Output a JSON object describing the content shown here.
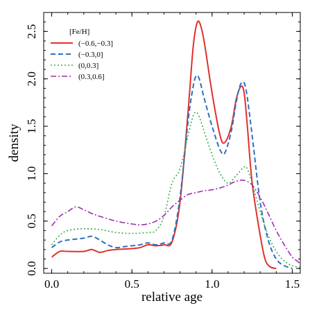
{
  "chart_data": {
    "type": "line",
    "xlabel": "relative age",
    "ylabel": "density",
    "xlim": [
      -0.05,
      1.55
    ],
    "ylim": [
      -0.05,
      2.7
    ],
    "x_ticks": [
      0.0,
      0.5,
      1.0,
      1.5
    ],
    "x_tick_labels": [
      "0.0",
      "0.5",
      "1.0",
      "1.5"
    ],
    "y_ticks": [
      0.0,
      0.5,
      1.0,
      1.5,
      2.0,
      2.5
    ],
    "y_tick_labels": [
      "0.0",
      "0.5",
      "1.0",
      "1.5",
      "2.0",
      "2.5"
    ],
    "legend": {
      "title": "[Fe/H]",
      "placement": "top-left"
    },
    "series": [
      {
        "name": "(−0.6,−0.3]",
        "color": "#e0302b",
        "style": "solid",
        "points": [
          [
            0.0,
            0.12
          ],
          [
            0.05,
            0.18
          ],
          [
            0.1,
            0.18
          ],
          [
            0.2,
            0.18
          ],
          [
            0.25,
            0.2
          ],
          [
            0.3,
            0.17
          ],
          [
            0.35,
            0.19
          ],
          [
            0.4,
            0.2
          ],
          [
            0.5,
            0.21
          ],
          [
            0.55,
            0.22
          ],
          [
            0.6,
            0.25
          ],
          [
            0.65,
            0.24
          ],
          [
            0.7,
            0.25
          ],
          [
            0.75,
            0.28
          ],
          [
            0.8,
            0.7
          ],
          [
            0.85,
            1.65
          ],
          [
            0.88,
            2.3
          ],
          [
            0.9,
            2.55
          ],
          [
            0.92,
            2.6
          ],
          [
            0.95,
            2.4
          ],
          [
            1.0,
            1.85
          ],
          [
            1.05,
            1.4
          ],
          [
            1.08,
            1.33
          ],
          [
            1.12,
            1.5
          ],
          [
            1.15,
            1.78
          ],
          [
            1.18,
            1.92
          ],
          [
            1.2,
            1.85
          ],
          [
            1.22,
            1.5
          ],
          [
            1.25,
            0.9
          ],
          [
            1.3,
            0.35
          ],
          [
            1.33,
            0.1
          ],
          [
            1.36,
            0.02
          ],
          [
            1.4,
            0.0
          ]
        ]
      },
      {
        "name": "(−0.3,0]",
        "color": "#2b6fbf",
        "style": "dashed",
        "points": [
          [
            0.0,
            0.22
          ],
          [
            0.05,
            0.28
          ],
          [
            0.1,
            0.3
          ],
          [
            0.2,
            0.32
          ],
          [
            0.25,
            0.34
          ],
          [
            0.3,
            0.3
          ],
          [
            0.35,
            0.25
          ],
          [
            0.4,
            0.22
          ],
          [
            0.45,
            0.23
          ],
          [
            0.5,
            0.24
          ],
          [
            0.55,
            0.25
          ],
          [
            0.6,
            0.27
          ],
          [
            0.65,
            0.25
          ],
          [
            0.7,
            0.27
          ],
          [
            0.75,
            0.3
          ],
          [
            0.8,
            0.75
          ],
          [
            0.85,
            1.55
          ],
          [
            0.88,
            1.9
          ],
          [
            0.9,
            2.03
          ],
          [
            0.92,
            2.0
          ],
          [
            0.95,
            1.8
          ],
          [
            1.0,
            1.5
          ],
          [
            1.05,
            1.25
          ],
          [
            1.08,
            1.22
          ],
          [
            1.12,
            1.45
          ],
          [
            1.15,
            1.75
          ],
          [
            1.18,
            1.95
          ],
          [
            1.21,
            1.9
          ],
          [
            1.25,
            1.4
          ],
          [
            1.3,
            0.7
          ],
          [
            1.35,
            0.3
          ],
          [
            1.4,
            0.1
          ],
          [
            1.45,
            0.03
          ],
          [
            1.5,
            0.0
          ]
        ]
      },
      {
        "name": "(0,0.3]",
        "color": "#3aa84a",
        "style": "dotted",
        "points": [
          [
            0.0,
            0.25
          ],
          [
            0.05,
            0.35
          ],
          [
            0.1,
            0.4
          ],
          [
            0.2,
            0.42
          ],
          [
            0.3,
            0.41
          ],
          [
            0.4,
            0.38
          ],
          [
            0.5,
            0.37
          ],
          [
            0.6,
            0.38
          ],
          [
            0.65,
            0.4
          ],
          [
            0.7,
            0.55
          ],
          [
            0.75,
            0.9
          ],
          [
            0.8,
            1.05
          ],
          [
            0.85,
            1.4
          ],
          [
            0.88,
            1.6
          ],
          [
            0.9,
            1.65
          ],
          [
            0.92,
            1.6
          ],
          [
            0.95,
            1.45
          ],
          [
            1.0,
            1.2
          ],
          [
            1.05,
            1.0
          ],
          [
            1.1,
            0.9
          ],
          [
            1.15,
            0.98
          ],
          [
            1.2,
            1.07
          ],
          [
            1.22,
            1.05
          ],
          [
            1.25,
            0.9
          ],
          [
            1.3,
            0.6
          ],
          [
            1.35,
            0.35
          ],
          [
            1.4,
            0.18
          ],
          [
            1.45,
            0.08
          ],
          [
            1.5,
            0.03
          ],
          [
            1.55,
            0.01
          ]
        ]
      },
      {
        "name": "(0.3,0.6]",
        "color": "#9b2fae",
        "style": "dashdot",
        "points": [
          [
            0.0,
            0.45
          ],
          [
            0.05,
            0.55
          ],
          [
            0.1,
            0.6
          ],
          [
            0.15,
            0.65
          ],
          [
            0.2,
            0.62
          ],
          [
            0.25,
            0.58
          ],
          [
            0.3,
            0.55
          ],
          [
            0.4,
            0.5
          ],
          [
            0.5,
            0.47
          ],
          [
            0.55,
            0.46
          ],
          [
            0.6,
            0.47
          ],
          [
            0.65,
            0.5
          ],
          [
            0.7,
            0.56
          ],
          [
            0.75,
            0.65
          ],
          [
            0.8,
            0.72
          ],
          [
            0.85,
            0.78
          ],
          [
            0.9,
            0.8
          ],
          [
            0.95,
            0.82
          ],
          [
            1.0,
            0.83
          ],
          [
            1.05,
            0.85
          ],
          [
            1.1,
            0.88
          ],
          [
            1.15,
            0.92
          ],
          [
            1.2,
            0.93
          ],
          [
            1.25,
            0.88
          ],
          [
            1.3,
            0.75
          ],
          [
            1.35,
            0.58
          ],
          [
            1.4,
            0.4
          ],
          [
            1.45,
            0.25
          ],
          [
            1.5,
            0.12
          ],
          [
            1.53,
            0.08
          ],
          [
            1.55,
            0.05
          ]
        ]
      }
    ]
  }
}
